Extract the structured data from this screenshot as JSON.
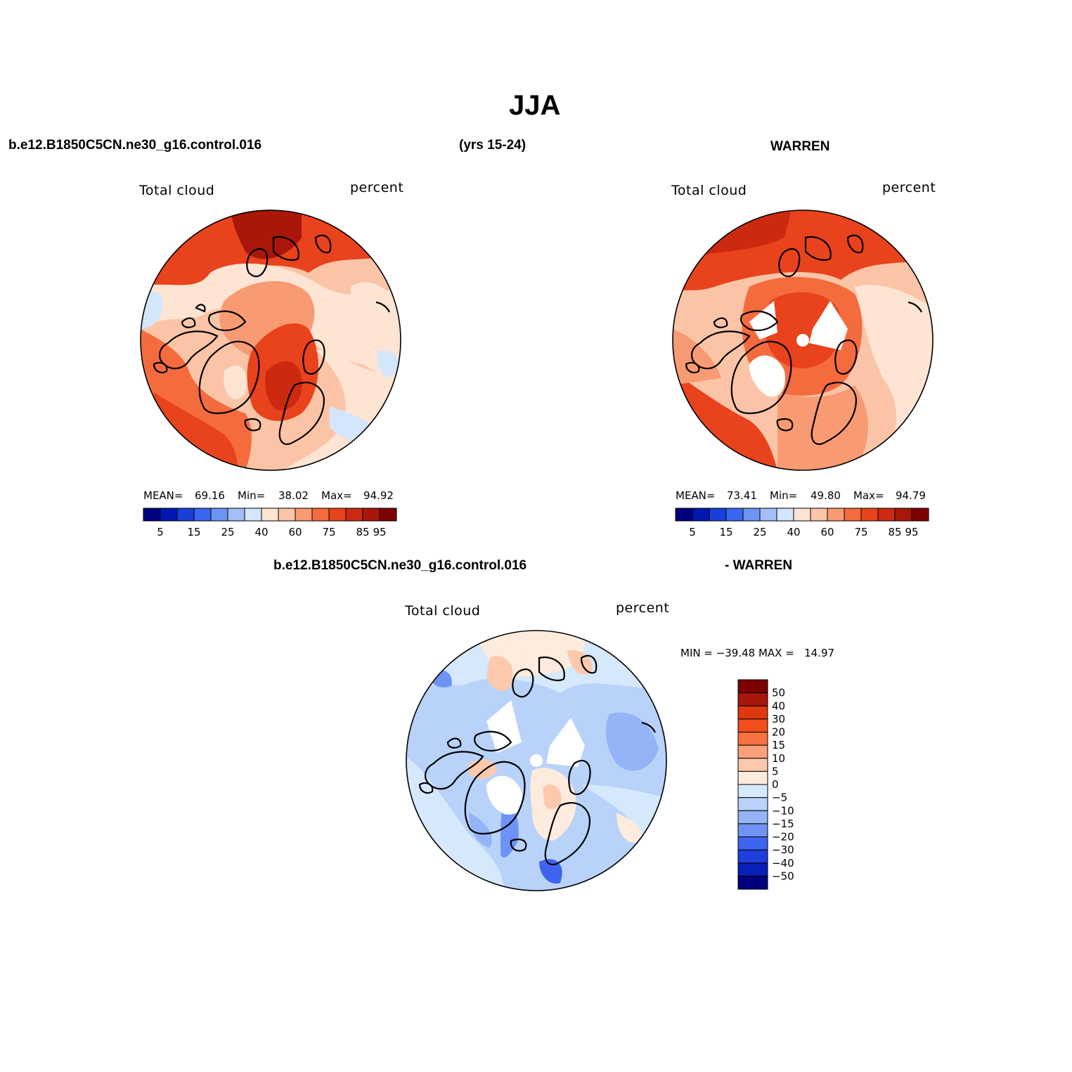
{
  "figure": {
    "title": "JJA",
    "case_name": "b.e12.B1850C5CN.ne30_g16.control.016",
    "years": "(yrs 15-24)",
    "obs_name": "WARREN",
    "diff_case_name": "b.e12.B1850C5CN.ne30_g16.control.016",
    "diff_obs_name": "- WARREN"
  },
  "panels": {
    "model": {
      "variable": "Total cloud",
      "units": "percent",
      "mean_label": "MEAN=",
      "mean": "69.16",
      "min_label": "Min=",
      "min": "38.02",
      "max_label": "Max=",
      "max": "94.92"
    },
    "obs": {
      "variable": "Total cloud",
      "units": "percent",
      "mean_label": "MEAN=",
      "mean": "73.41",
      "min_label": "Min=",
      "min": "49.80",
      "max_label": "Max=",
      "max": "94.79"
    },
    "diff": {
      "variable": "Total cloud",
      "units": "percent",
      "minmax_text": "MIN = −39.48 MAX =   14.97"
    }
  },
  "chart_data": {
    "type": "heatmap",
    "projection": "north-polar-stereographic",
    "abs_colorbar": {
      "orientation": "horizontal",
      "colors": [
        "#00007f",
        "#0018b0",
        "#1a3fd8",
        "#3b66f0",
        "#6d93f5",
        "#a3bff8",
        "#d3e6fb",
        "#fde4d3",
        "#fbc4a7",
        "#f89a72",
        "#f46b3e",
        "#e8431c",
        "#cc2a10",
        "#a8170a",
        "#7f0000"
      ],
      "tick_labels": [
        "5",
        "15",
        "25",
        "40",
        "60",
        "75",
        "85",
        "95"
      ]
    },
    "diff_colorbar": {
      "orientation": "vertical",
      "colors": [
        "#7f0000",
        "#a8170a",
        "#e0380e",
        "#f34e1c",
        "#f67140",
        "#f9a07a",
        "#fcc9ad",
        "#fdebdd",
        "#d6e8fc",
        "#b8d2fa",
        "#94b4f7",
        "#6f93f4",
        "#3e64ee",
        "#1e3fdc",
        "#0620b8",
        "#00007f"
      ],
      "tick_labels": [
        "50",
        "40",
        "30",
        "20",
        "15",
        "10",
        "5",
        "0",
        "−5",
        "−10",
        "−15",
        "−20",
        "−30",
        "−40",
        "−50"
      ]
    }
  },
  "colors": {
    "model_map": [
      "#fbc4a7",
      "#f89a72",
      "#f46b3e",
      "#e8431c",
      "#cc2a10",
      "#a8170a",
      "#fde4d3",
      "#d3e6fb"
    ],
    "obs_map": [
      "#fbc4a7",
      "#f89a72",
      "#f46b3e",
      "#e8431c",
      "#cc2a10",
      "#fde4d3"
    ],
    "diff_map": [
      "#d6e8fc",
      "#b8d2fa",
      "#94b4f7",
      "#fdebdd",
      "#fcc9ad",
      "#6f93f4",
      "#3e64ee"
    ]
  }
}
